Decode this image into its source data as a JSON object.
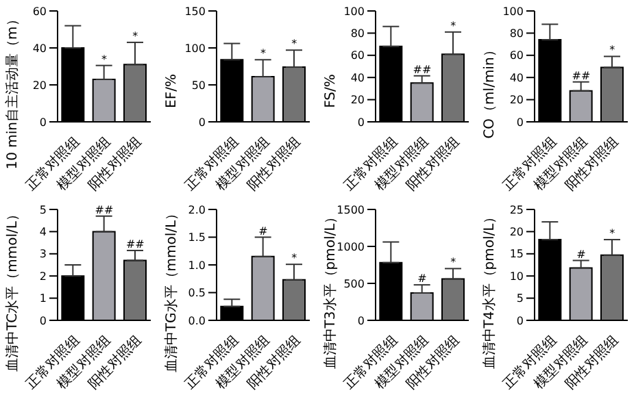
{
  "chart_data": [
    {
      "type": "bar",
      "ylabel": "10 min自主活动量（m）",
      "categories": [
        "正常对照组",
        "模型对照组",
        "阳性对照组"
      ],
      "values": [
        40,
        23,
        31
      ],
      "colors": [
        "#000000",
        "#a3a3aa",
        "#737373"
      ],
      "errors": [
        [
          40,
          52
        ],
        [
          23,
          30.5
        ],
        [
          31,
          43
        ]
      ],
      "ylim": [
        0,
        60
      ],
      "yticks": [
        0,
        20,
        40,
        60
      ],
      "annotations": [
        {
          "text": "*",
          "x": "模型对照组",
          "y": 30.5
        },
        {
          "text": "*",
          "x": "阳性对照组",
          "y": 43
        }
      ]
    },
    {
      "type": "bar",
      "ylabel": "EF/%",
      "categories": [
        "正常对照组",
        "模型对照组",
        "阳性对照组"
      ],
      "values": [
        84,
        61,
        74
      ],
      "colors": [
        "#000000",
        "#a3a3aa",
        "#737373"
      ],
      "errors": [
        [
          84,
          106
        ],
        [
          61,
          84
        ],
        [
          74,
          97
        ]
      ],
      "ylim": [
        0,
        150
      ],
      "yticks": [
        0,
        50,
        100,
        150
      ],
      "annotations": [
        {
          "text": "*",
          "x": "模型对照组",
          "y": 84
        },
        {
          "text": "*",
          "x": "阳性对照组",
          "y": 97
        }
      ]
    },
    {
      "type": "bar",
      "ylabel": "FS/%",
      "categories": [
        "正常对照组",
        "模型对照组",
        "阳性对照组"
      ],
      "values": [
        68,
        35,
        61
      ],
      "colors": [
        "#000000",
        "#a3a3aa",
        "#737373"
      ],
      "errors": [
        [
          68,
          86
        ],
        [
          35,
          41.5
        ],
        [
          61,
          81
        ]
      ],
      "ylim": [
        0,
        100
      ],
      "yticks": [
        0,
        20,
        40,
        60,
        80,
        100
      ],
      "annotations": [
        {
          "text": "##",
          "x": "模型对照组",
          "y": 41.5
        },
        {
          "text": "*",
          "x": "阳性对照组",
          "y": 81
        }
      ]
    },
    {
      "type": "bar",
      "ylabel": "CO（ml/min）",
      "categories": [
        "正常对照组",
        "模型对照组",
        "阳性对照组"
      ],
      "values": [
        74,
        28,
        49
      ],
      "colors": [
        "#000000",
        "#a3a3aa",
        "#737373"
      ],
      "errors": [
        [
          74,
          88
        ],
        [
          28,
          36
        ],
        [
          49,
          59
        ]
      ],
      "ylim": [
        0,
        100
      ],
      "yticks": [
        0,
        20,
        40,
        60,
        80,
        100
      ],
      "annotations": [
        {
          "text": "##",
          "x": "模型对照组",
          "y": 36
        },
        {
          "text": "*",
          "x": "阳性对照组",
          "y": 59
        }
      ]
    },
    {
      "type": "bar",
      "ylabel": "血清中TC水平（mmol/L）",
      "categories": [
        "正常对照组",
        "模型对照组",
        "阳性对照组"
      ],
      "values": [
        2.0,
        4.0,
        2.7
      ],
      "colors": [
        "#000000",
        "#a3a3aa",
        "#737373"
      ],
      "errors": [
        [
          2.0,
          2.5
        ],
        [
          4.0,
          4.7
        ],
        [
          2.7,
          3.15
        ]
      ],
      "ylim": [
        0,
        5
      ],
      "yticks": [
        0,
        1,
        2,
        3,
        4,
        5
      ],
      "annotations": [
        {
          "text": "##",
          "x": "模型对照组",
          "y": 4.7
        },
        {
          "text": "##",
          "x": "阳性对照组",
          "y": 3.15
        }
      ]
    },
    {
      "type": "bar",
      "ylabel": "血清中TG水平（mmol/L）",
      "categories": [
        "正常对照组",
        "模型对照组",
        "阳性对照组"
      ],
      "values": [
        0.25,
        1.15,
        0.73
      ],
      "colors": [
        "#000000",
        "#a3a3aa",
        "#737373"
      ],
      "errors": [
        [
          0.25,
          0.38
        ],
        [
          1.15,
          1.5
        ],
        [
          0.73,
          1.01
        ]
      ],
      "ylim": [
        0,
        2
      ],
      "yticks": [
        {
          "value": 0,
          "label": "0.0"
        },
        0.5,
        {
          "value": 1,
          "label": "1.0"
        },
        1.5,
        {
          "value": 2,
          "label": "2.0"
        }
      ],
      "annotations": [
        {
          "text": "#",
          "x": "模型对照组",
          "y": 1.5
        },
        {
          "text": "*",
          "x": "阳性对照组",
          "y": 1.01
        }
      ]
    },
    {
      "type": "bar",
      "ylabel": "血清中T3水平（pmol/L）",
      "categories": [
        "正常对照组",
        "模型对照组",
        "阳性对照组"
      ],
      "values": [
        780,
        370,
        560
      ],
      "colors": [
        "#000000",
        "#a3a3aa",
        "#737373"
      ],
      "errors": [
        [
          780,
          1060
        ],
        [
          370,
          480
        ],
        [
          560,
          700
        ]
      ],
      "ylim": [
        0,
        1500
      ],
      "yticks": [
        0,
        500,
        1000,
        1500
      ],
      "annotations": [
        {
          "text": "#",
          "x": "模型对照组",
          "y": 480
        },
        {
          "text": "*",
          "x": "阳性对照组",
          "y": 700
        }
      ]
    },
    {
      "type": "bar",
      "ylabel": "血清中T4水平（pmol/L）",
      "categories": [
        "正常对照组",
        "模型对照组",
        "阳性对照组"
      ],
      "values": [
        18.2,
        11.8,
        14.7
      ],
      "colors": [
        "#000000",
        "#a3a3aa",
        "#737373"
      ],
      "errors": [
        [
          18.2,
          22.2
        ],
        [
          11.8,
          13.5
        ],
        [
          14.7,
          18.2
        ]
      ],
      "ylim": [
        0,
        25
      ],
      "yticks": [
        0,
        5,
        10,
        15,
        20,
        25
      ],
      "annotations": [
        {
          "text": "#",
          "x": "模型对照组",
          "y": 13.5
        },
        {
          "text": "*",
          "x": "阳性对照组",
          "y": 18.2
        }
      ]
    }
  ]
}
